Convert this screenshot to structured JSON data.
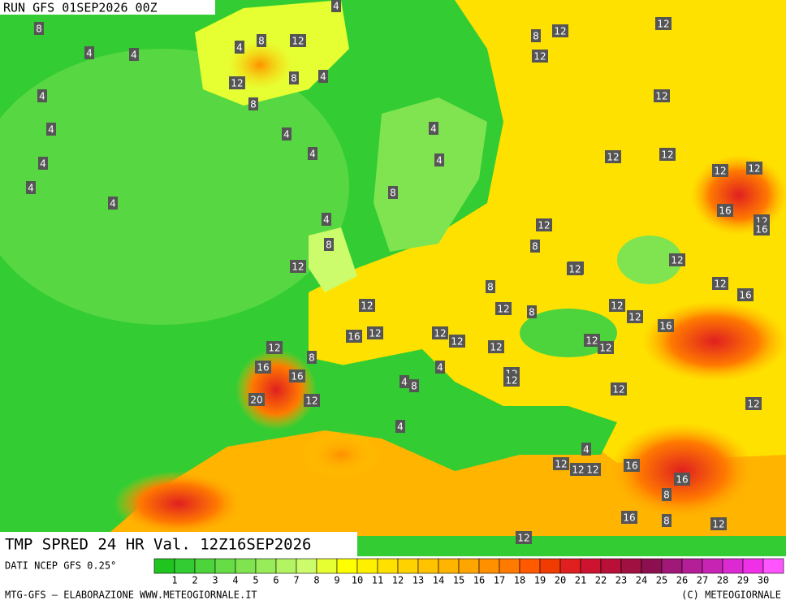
{
  "header": {
    "title": "RUN GFS 01SEP2026 00Z"
  },
  "footer": {
    "product": "TMP SPRED 24 HR Val. 12Z16SEP2026",
    "source": "DATI NCEP GFS 0.25°",
    "credit_left": "MTG-GFS — ELABORAZIONE WWW.METEOGIORNALE.IT",
    "credit_right": "(C) METEOGIORNALE"
  },
  "legend": {
    "labels": [
      1,
      2,
      3,
      4,
      5,
      6,
      7,
      8,
      9,
      10,
      11,
      12,
      13,
      14,
      15,
      16,
      17,
      18,
      19,
      20,
      21,
      22,
      23,
      24,
      25,
      26,
      27,
      28,
      29,
      30
    ],
    "colors": [
      "#1fc41f",
      "#33cc33",
      "#4dd43d",
      "#66dc47",
      "#80e450",
      "#99ec59",
      "#b3f462",
      "#ccfc6b",
      "#e6ff33",
      "#ffff00",
      "#fff000",
      "#ffe100",
      "#ffd200",
      "#ffc300",
      "#ffb400",
      "#ffa500",
      "#ff9000",
      "#ff7a00",
      "#ff5a00",
      "#f03c00",
      "#e02020",
      "#cc1430",
      "#b81038",
      "#a01040",
      "#8c1050",
      "#a01878",
      "#b41e96",
      "#c824b4",
      "#dc2ad2",
      "#f030e6",
      "#ff55ff"
    ]
  },
  "map": {
    "labels": [
      8,
      4,
      4,
      4,
      8,
      12,
      12,
      8,
      4,
      4,
      4,
      4,
      4,
      4,
      4,
      4,
      8,
      4,
      4,
      8,
      4,
      12,
      8,
      12,
      12,
      4,
      8,
      12,
      12,
      16,
      12,
      16,
      8,
      12,
      12,
      12,
      8,
      12,
      16,
      12,
      16,
      16,
      12,
      12,
      20,
      16,
      12,
      8,
      12,
      12,
      12,
      4,
      4,
      8,
      12,
      12,
      12,
      12,
      16,
      16,
      12,
      12,
      16,
      12,
      12,
      8,
      12,
      12,
      12,
      12,
      12,
      12,
      12,
      8,
      4,
      4,
      12,
      12,
      16,
      12,
      8,
      12
    ]
  }
}
